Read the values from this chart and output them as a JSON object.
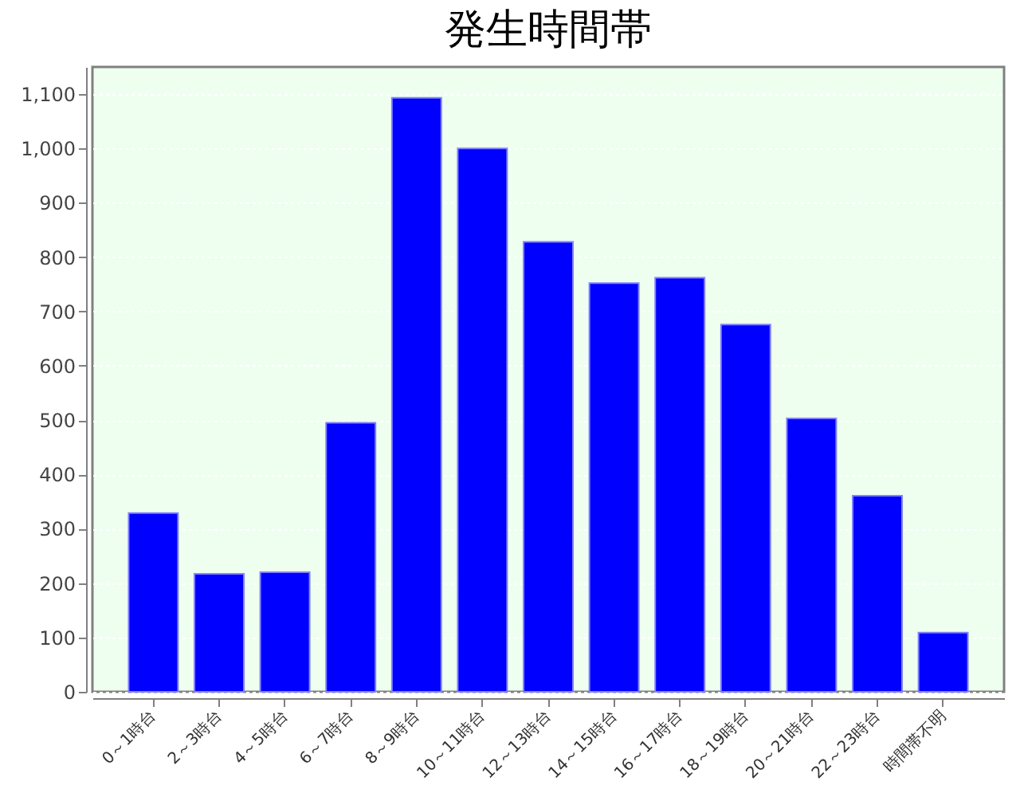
{
  "chart_data": {
    "type": "bar",
    "title": "発生時間帯",
    "categories": [
      "0～1時台",
      "2～3時台",
      "4～5時台",
      "6～7時台",
      "8～9時台",
      "10～11時台",
      "12～13時台",
      "14～15時台",
      "16～17時台",
      "18～19時台",
      "20～21時台",
      "22～23時台",
      "時間帯不明"
    ],
    "values": [
      329,
      217,
      220,
      495,
      1093,
      1000,
      828,
      752,
      762,
      676,
      503,
      361,
      109
    ],
    "color": "#0000ff",
    "ylim": [
      0,
      1150
    ],
    "yticks": [
      0,
      100,
      200,
      300,
      400,
      500,
      600,
      700,
      800,
      900,
      {
        "value": 1000,
        "label": "1,000"
      },
      {
        "value": 1100,
        "label": "1,100"
      }
    ],
    "grid": "y"
  }
}
